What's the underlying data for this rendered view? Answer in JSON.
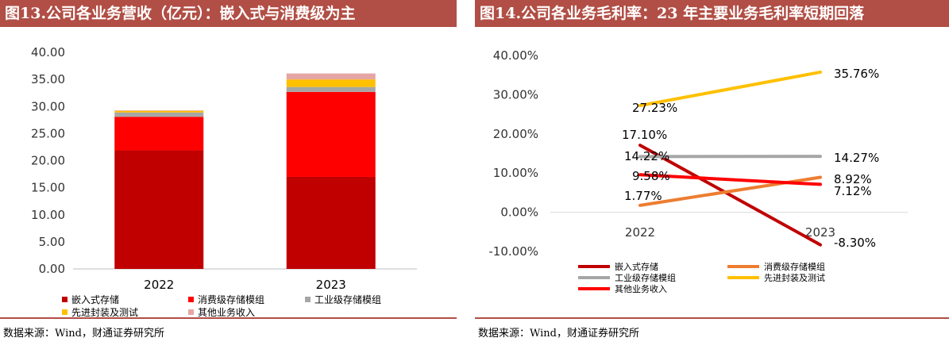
{
  "left": {
    "title": "图13.公司各业务营收（亿元）：嵌入式与消费级为主",
    "source": "数据来源：Wind，财通证券研究所"
  },
  "right": {
    "title": "图14.公司各业务毛利率：23 年主要业务毛利率短期回落",
    "source": "数据来源：Wind，财通证券研究所"
  },
  "chart_data": [
    {
      "type": "bar",
      "stacked": true,
      "title": "",
      "xlabel": "",
      "ylabel": "",
      "ylim": [
        0,
        40
      ],
      "yticks": [
        "0.00",
        "5.00",
        "10.00",
        "15.00",
        "20.00",
        "25.00",
        "30.00",
        "35.00",
        "40.00"
      ],
      "categories": [
        "2022",
        "2023"
      ],
      "series": [
        {
          "name": "嵌入式存储",
          "color": "#c00000",
          "values": [
            21.9,
            17.0
          ]
        },
        {
          "name": "消费级存储模组",
          "color": "#ff0000",
          "values": [
            6.2,
            15.7
          ]
        },
        {
          "name": "工业级存储模组",
          "color": "#a6a6a6",
          "values": [
            0.8,
            0.9
          ]
        },
        {
          "name": "先进封装及测试",
          "color": "#ffc000",
          "values": [
            0.3,
            1.4
          ]
        },
        {
          "name": "其他业务收入",
          "color": "#e6a5a5",
          "values": [
            0.1,
            1.1
          ]
        }
      ],
      "legend_position": "bottom",
      "grid": false
    },
    {
      "type": "line",
      "title": "",
      "xlabel": "",
      "ylabel": "",
      "ylim": [
        -10,
        40
      ],
      "yticks": [
        "-10.00%",
        "0.00%",
        "10.00%",
        "20.00%",
        "30.00%",
        "40.00%"
      ],
      "categories": [
        "2022",
        "2023"
      ],
      "series": [
        {
          "name": "嵌入式存储",
          "color": "#c00000",
          "values": [
            17.1,
            -8.3
          ],
          "labels": [
            "17.10%",
            "-8.30%"
          ]
        },
        {
          "name": "消费级存储模组",
          "color": "#ed7d31",
          "values": [
            1.77,
            8.92
          ],
          "labels": [
            "1.77%",
            "8.92%"
          ]
        },
        {
          "name": "工业级存储模组",
          "color": "#a6a6a6",
          "values": [
            14.22,
            14.27
          ],
          "labels": [
            "14.22%",
            "14.27%"
          ]
        },
        {
          "name": "先进封装及测试",
          "color": "#ffc000",
          "values": [
            27.23,
            35.76
          ],
          "labels": [
            "27.23%",
            "35.76%"
          ]
        },
        {
          "name": "其他业务收入",
          "color": "#ff0000",
          "values": [
            9.58,
            7.12
          ],
          "labels": [
            "9.58%",
            "7.12%"
          ]
        }
      ],
      "legend_position": "bottom",
      "grid": false
    }
  ]
}
